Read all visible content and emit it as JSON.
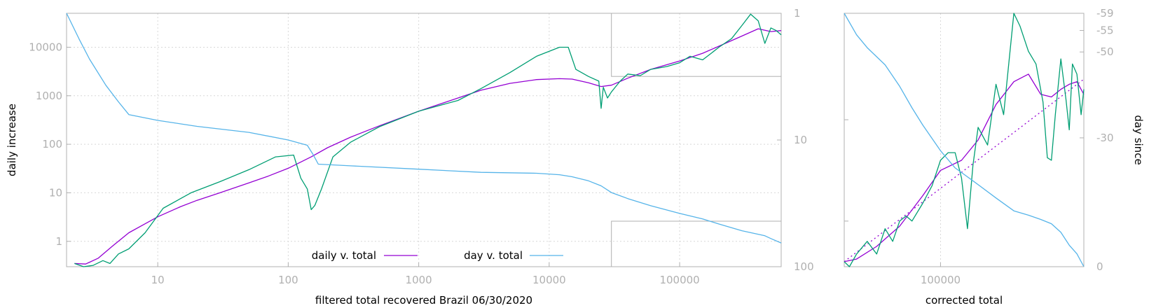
{
  "chart_data": [
    {
      "type": "line",
      "title": "",
      "xlabel": "filtered total recovered Brazil 06/30/2020",
      "ylabel": "daily increase",
      "y2label": "",
      "x_scale": "log",
      "y_scale": "log",
      "y2_scale": "log-inverted",
      "xlim": [
        2,
        600000
      ],
      "ylim": [
        0.3,
        50000
      ],
      "y2lim": [
        1,
        100
      ],
      "x_ticks": [
        "10",
        "100",
        "1000",
        "10000",
        "100000"
      ],
      "x_tick_values": [
        10,
        100,
        1000,
        10000,
        100000
      ],
      "y_ticks": [
        "1",
        "10",
        "100",
        "1000",
        "10000"
      ],
      "y_tick_values": [
        1,
        10,
        100,
        1000,
        10000
      ],
      "y2_ticks": [
        "1",
        "10",
        "100"
      ],
      "y2_tick_values": [
        1,
        10,
        100
      ],
      "grid": true,
      "legend": "bottom-center",
      "series": [
        {
          "name": "daily v. total",
          "color": "#9400d3",
          "axis": "y",
          "x": [
            2.3,
            2.8,
            3.5,
            4.5,
            6,
            8,
            10,
            15,
            20,
            30,
            50,
            70,
            100,
            150,
            200,
            300,
            500,
            1000,
            2000,
            3000,
            5000,
            8000,
            12000,
            15000,
            20000,
            25000,
            30000,
            40000,
            60000,
            100000,
            150000,
            200000,
            300000,
            400000,
            500000,
            600000
          ],
          "values": [
            0.35,
            0.34,
            0.45,
            0.8,
            1.5,
            2.3,
            3.2,
            5.2,
            7,
            10,
            16,
            22,
            32,
            55,
            85,
            140,
            240,
            480,
            900,
            1300,
            1800,
            2150,
            2250,
            2200,
            1850,
            1550,
            1650,
            2300,
            3500,
            5200,
            7500,
            10500,
            17000,
            24000,
            21000,
            22000
          ]
        },
        {
          "name": "",
          "color": "#009e73",
          "axis": "y",
          "x": [
            2.3,
            2.7,
            3.2,
            3.8,
            4.3,
            5,
            6,
            8,
            11,
            18,
            30,
            50,
            80,
            110,
            125,
            140,
            150,
            160,
            180,
            220,
            300,
            500,
            1000,
            2000,
            3000,
            5000,
            8000,
            12000,
            14000,
            16000,
            20000,
            24000,
            25000,
            26000,
            28000,
            30000,
            35000,
            40000,
            50000,
            60000,
            80000,
            100000,
            120000,
            150000,
            180000,
            200000,
            250000,
            300000,
            350000,
            400000,
            450000,
            500000,
            550000,
            600000
          ],
          "values": [
            0.35,
            0.3,
            0.32,
            0.4,
            0.35,
            0.55,
            0.7,
            1.5,
            4.8,
            10,
            17,
            30,
            55,
            60,
            20,
            12,
            4.5,
            5.5,
            12,
            55,
            110,
            230,
            480,
            800,
            1400,
            3000,
            6500,
            10000,
            10000,
            3500,
            2500,
            2000,
            550,
            1500,
            900,
            1200,
            2000,
            2800,
            2600,
            3500,
            4000,
            4800,
            6500,
            5500,
            8000,
            10000,
            15000,
            28000,
            48000,
            35000,
            12000,
            25000,
            22000,
            18000
          ]
        },
        {
          "name": "day v. total",
          "color": "#56b4e9",
          "axis": "y2",
          "x": [
            2,
            2.5,
            3,
            4,
            5,
            6,
            10,
            20,
            50,
            100,
            140,
            155,
            170,
            300,
            1000,
            3000,
            8000,
            12000,
            15000,
            20000,
            25000,
            30000,
            40000,
            60000,
            100000,
            150000,
            200000,
            300000,
            450000,
            500000,
            600000
          ],
          "values": [
            1,
            1.6,
            2.3,
            3.7,
            5,
            6.3,
            7,
            7.8,
            8.7,
            10,
            11,
            13,
            15.5,
            16,
            17,
            18,
            18.3,
            18.8,
            19.5,
            21,
            23,
            26,
            29,
            33,
            38,
            42,
            46,
            52,
            57,
            60,
            65
          ]
        }
      ],
      "annotations": [
        {
          "type": "box",
          "x": [
            30000,
            600000
          ],
          "y": [
            2500,
            50000
          ]
        },
        {
          "type": "box",
          "x": [
            30000,
            600000
          ],
          "y": [
            0.3,
            2.6
          ]
        }
      ]
    },
    {
      "type": "line",
      "title": "",
      "xlabel": "corrected total",
      "ylabel": "",
      "y2label": "day since",
      "x_scale": "log",
      "xlim": [
        30000,
        600000
      ],
      "x_ticks": [
        "100000"
      ],
      "x_tick_values": [
        100000
      ],
      "y2lim": [
        0,
        -59
      ],
      "y2_ticks": [
        "-59",
        "-55",
        "-50",
        "-30",
        "0"
      ],
      "y2_tick_values": [
        -59,
        -55,
        -50,
        -30,
        0
      ],
      "grid": true,
      "series": [
        {
          "name": "",
          "color": "#9400d3",
          "axis": "y",
          "x": [
            30000,
            35000,
            45000,
            60000,
            80000,
            100000,
            130000,
            160000,
            200000,
            250000,
            300000,
            350000,
            400000,
            450000,
            500000,
            550000,
            600000
          ],
          "values": [
            0.02,
            0.03,
            0.08,
            0.16,
            0.28,
            0.38,
            0.42,
            0.5,
            0.64,
            0.73,
            0.76,
            0.68,
            0.67,
            0.7,
            0.72,
            0.73,
            0.68
          ],
          "style": "solid"
        },
        {
          "name": "",
          "color": "#9400d3",
          "axis": "y",
          "x": [
            30000,
            600000
          ],
          "values": [
            0.02,
            0.74
          ],
          "style": "dotted"
        },
        {
          "name": "",
          "color": "#009e73",
          "axis": "y",
          "x": [
            30000,
            32000,
            35000,
            40000,
            45000,
            50000,
            55000,
            60000,
            65000,
            70000,
            80000,
            90000,
            100000,
            110000,
            120000,
            130000,
            140000,
            150000,
            160000,
            180000,
            200000,
            220000,
            250000,
            270000,
            300000,
            330000,
            360000,
            380000,
            400000,
            420000,
            450000,
            480000,
            500000,
            520000,
            550000,
            580000,
            600000
          ],
          "values": [
            0.02,
            0.0,
            0.05,
            0.1,
            0.05,
            0.15,
            0.1,
            0.18,
            0.2,
            0.18,
            0.25,
            0.32,
            0.42,
            0.45,
            0.45,
            0.35,
            0.15,
            0.4,
            0.55,
            0.48,
            0.72,
            0.6,
            1.0,
            0.95,
            0.85,
            0.8,
            0.65,
            0.43,
            0.42,
            0.6,
            0.82,
            0.66,
            0.54,
            0.8,
            0.76,
            0.6,
            0.7
          ]
        },
        {
          "name": "",
          "color": "#56b4e9",
          "axis": "y2",
          "x": [
            30000,
            35000,
            40000,
            50000,
            60000,
            70000,
            80000,
            100000,
            120000,
            150000,
            200000,
            250000,
            300000,
            350000,
            400000,
            450000,
            500000,
            550000,
            600000
          ],
          "values": [
            -59,
            -54,
            -51,
            -47,
            -42,
            -37,
            -33,
            -27,
            -23,
            -20,
            -16,
            -13,
            -12,
            -11,
            -10,
            -8,
            -5,
            -3,
            0
          ]
        }
      ]
    }
  ]
}
